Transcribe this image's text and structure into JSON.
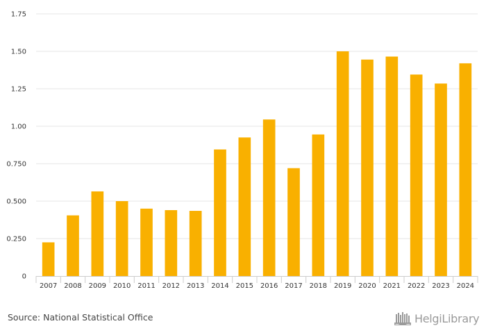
{
  "chart_data": {
    "type": "bar",
    "title": "",
    "xlabel": "",
    "ylabel": "",
    "categories": [
      "2007",
      "2008",
      "2009",
      "2010",
      "2011",
      "2012",
      "2013",
      "2014",
      "2015",
      "2016",
      "2017",
      "2018",
      "2019",
      "2020",
      "2021",
      "2022",
      "2023",
      "2024"
    ],
    "values": [
      0.225,
      0.405,
      0.565,
      0.5,
      0.45,
      0.44,
      0.435,
      0.845,
      0.925,
      1.045,
      0.72,
      0.945,
      1.5,
      1.445,
      1.465,
      1.345,
      1.285,
      1.42
    ],
    "ylim": [
      0,
      1.75
    ],
    "yticks": [
      "0",
      "0.250",
      "0.500",
      "0.750",
      "1.00",
      "1.25",
      "1.50",
      "1.75"
    ],
    "ytick_values": [
      0,
      0.25,
      0.5,
      0.75,
      1.0,
      1.25,
      1.5,
      1.75
    ],
    "grid": true,
    "colors": {
      "bar": "#F9B000",
      "grid": "#e6e6e6",
      "axis": "#cccccc"
    }
  },
  "footer": {
    "source": "Source: National Statistical Office",
    "brand": "HelgiLibrary",
    "brand_icon": "library-logo-icon"
  }
}
